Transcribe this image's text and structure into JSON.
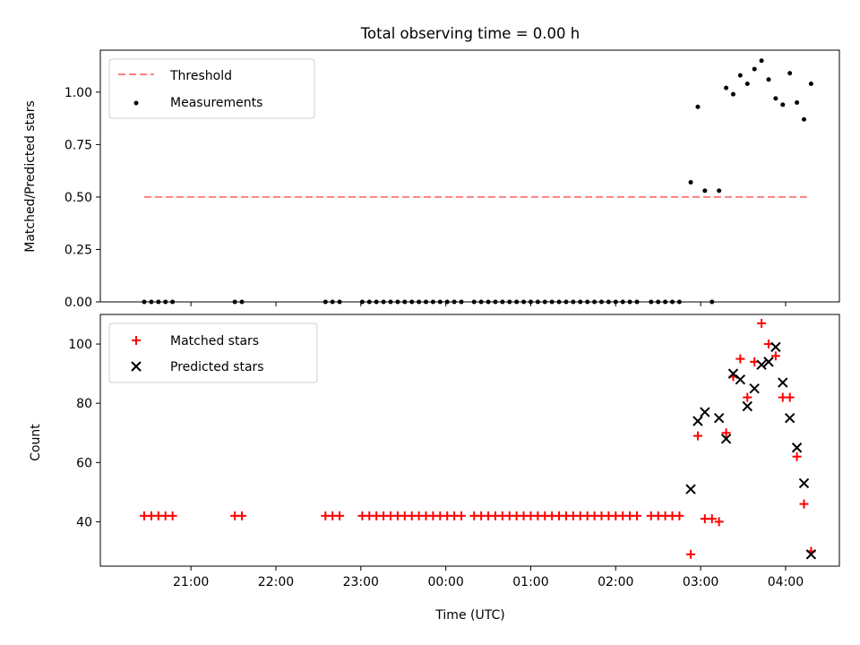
{
  "chart_data": [
    {
      "type": "scatter",
      "panel": "top",
      "title": "Total observing time = 0.00 h",
      "xlabel": "",
      "ylabel": "Matched/Predicted stars",
      "ylim": [
        0,
        1.2
      ],
      "yticks": [
        "0.00",
        "0.25",
        "0.50",
        "0.75",
        "1.00"
      ],
      "grid": false,
      "legend_position": "top-left",
      "threshold": {
        "name": "Threshold",
        "value": 0.5,
        "color": "#ff7f7f",
        "x_start": "20:27",
        "x_end": "04:15"
      },
      "series": [
        {
          "name": "Measurements",
          "color": "#000000",
          "marker": "dot",
          "points": [
            [
              "20:27",
              0
            ],
            [
              "20:32",
              0
            ],
            [
              "20:37",
              0
            ],
            [
              "20:42",
              0
            ],
            [
              "20:47",
              0
            ],
            [
              "21:31",
              0
            ],
            [
              "21:36",
              0
            ],
            [
              "22:35",
              0
            ],
            [
              "22:40",
              0
            ],
            [
              "22:45",
              0
            ],
            [
              "23:01",
              0
            ],
            [
              "23:06",
              0
            ],
            [
              "23:11",
              0
            ],
            [
              "23:16",
              0
            ],
            [
              "23:21",
              0
            ],
            [
              "23:26",
              0
            ],
            [
              "23:31",
              0
            ],
            [
              "23:36",
              0
            ],
            [
              "23:41",
              0
            ],
            [
              "23:46",
              0
            ],
            [
              "23:51",
              0
            ],
            [
              "23:56",
              0
            ],
            [
              "00:01",
              0
            ],
            [
              "00:06",
              0
            ],
            [
              "00:11",
              0
            ],
            [
              "00:20",
              0
            ],
            [
              "00:25",
              0
            ],
            [
              "00:30",
              0
            ],
            [
              "00:35",
              0
            ],
            [
              "00:40",
              0
            ],
            [
              "00:45",
              0
            ],
            [
              "00:50",
              0
            ],
            [
              "00:55",
              0
            ],
            [
              "01:00",
              0
            ],
            [
              "01:05",
              0
            ],
            [
              "01:10",
              0
            ],
            [
              "01:15",
              0
            ],
            [
              "01:20",
              0
            ],
            [
              "01:25",
              0
            ],
            [
              "01:30",
              0
            ],
            [
              "01:35",
              0
            ],
            [
              "01:40",
              0
            ],
            [
              "01:45",
              0
            ],
            [
              "01:50",
              0
            ],
            [
              "01:55",
              0
            ],
            [
              "02:00",
              0
            ],
            [
              "02:05",
              0
            ],
            [
              "02:10",
              0
            ],
            [
              "02:15",
              0
            ],
            [
              "02:25",
              0
            ],
            [
              "02:30",
              0
            ],
            [
              "02:35",
              0
            ],
            [
              "02:40",
              0
            ],
            [
              "02:45",
              0
            ],
            [
              "02:53",
              0.57
            ],
            [
              "02:58",
              0.93
            ],
            [
              "03:03",
              0.53
            ],
            [
              "03:08",
              0
            ],
            [
              "03:13",
              0.53
            ],
            [
              "03:18",
              1.02
            ],
            [
              "03:23",
              0.99
            ],
            [
              "03:28",
              1.08
            ],
            [
              "03:33",
              1.04
            ],
            [
              "03:38",
              1.11
            ],
            [
              "03:43",
              1.15
            ],
            [
              "03:48",
              1.06
            ],
            [
              "03:53",
              0.97
            ],
            [
              "03:58",
              0.94
            ],
            [
              "04:03",
              1.09
            ],
            [
              "04:08",
              0.95
            ],
            [
              "04:13",
              0.87
            ],
            [
              "04:18",
              1.04
            ]
          ]
        }
      ]
    },
    {
      "type": "scatter",
      "panel": "bottom",
      "title": "",
      "xlabel": "Time (UTC)",
      "ylabel": "Count",
      "ylim": [
        25,
        110
      ],
      "yticks": [
        "40",
        "60",
        "80",
        "100"
      ],
      "xticks": [
        "21:00",
        "22:00",
        "23:00",
        "00:00",
        "01:00",
        "02:00",
        "03:00",
        "04:00"
      ],
      "xlim": [
        "19:56",
        "04:38"
      ],
      "grid": false,
      "legend_position": "top-left",
      "series": [
        {
          "name": "Matched stars",
          "color": "#ff0000",
          "marker": "plus",
          "points": [
            [
              "20:27",
              42
            ],
            [
              "20:32",
              42
            ],
            [
              "20:37",
              42
            ],
            [
              "20:42",
              42
            ],
            [
              "20:47",
              42
            ],
            [
              "21:31",
              42
            ],
            [
              "21:36",
              42
            ],
            [
              "22:35",
              42
            ],
            [
              "22:40",
              42
            ],
            [
              "22:45",
              42
            ],
            [
              "23:01",
              42
            ],
            [
              "23:06",
              42
            ],
            [
              "23:11",
              42
            ],
            [
              "23:16",
              42
            ],
            [
              "23:21",
              42
            ],
            [
              "23:26",
              42
            ],
            [
              "23:31",
              42
            ],
            [
              "23:36",
              42
            ],
            [
              "23:41",
              42
            ],
            [
              "23:46",
              42
            ],
            [
              "23:51",
              42
            ],
            [
              "23:56",
              42
            ],
            [
              "00:01",
              42
            ],
            [
              "00:06",
              42
            ],
            [
              "00:11",
              42
            ],
            [
              "00:20",
              42
            ],
            [
              "00:25",
              42
            ],
            [
              "00:30",
              42
            ],
            [
              "00:35",
              42
            ],
            [
              "00:40",
              42
            ],
            [
              "00:45",
              42
            ],
            [
              "00:50",
              42
            ],
            [
              "00:55",
              42
            ],
            [
              "01:00",
              42
            ],
            [
              "01:05",
              42
            ],
            [
              "01:10",
              42
            ],
            [
              "01:15",
              42
            ],
            [
              "01:20",
              42
            ],
            [
              "01:25",
              42
            ],
            [
              "01:30",
              42
            ],
            [
              "01:35",
              42
            ],
            [
              "01:40",
              42
            ],
            [
              "01:45",
              42
            ],
            [
              "01:50",
              42
            ],
            [
              "01:55",
              42
            ],
            [
              "02:00",
              42
            ],
            [
              "02:05",
              42
            ],
            [
              "02:10",
              42
            ],
            [
              "02:15",
              42
            ],
            [
              "02:25",
              42
            ],
            [
              "02:30",
              42
            ],
            [
              "02:35",
              42
            ],
            [
              "02:40",
              42
            ],
            [
              "02:45",
              42
            ],
            [
              "02:53",
              29
            ],
            [
              "02:58",
              69
            ],
            [
              "03:03",
              41
            ],
            [
              "03:08",
              41
            ],
            [
              "03:13",
              40
            ],
            [
              "03:18",
              70
            ],
            [
              "03:23",
              89
            ],
            [
              "03:28",
              95
            ],
            [
              "03:33",
              82
            ],
            [
              "03:38",
              94
            ],
            [
              "03:43",
              107
            ],
            [
              "03:48",
              100
            ],
            [
              "03:53",
              96
            ],
            [
              "03:58",
              82
            ],
            [
              "04:03",
              82
            ],
            [
              "04:08",
              62
            ],
            [
              "04:13",
              46
            ],
            [
              "04:18",
              30
            ]
          ]
        },
        {
          "name": "Predicted stars",
          "color": "#000000",
          "marker": "x",
          "points": [
            [
              "02:53",
              51
            ],
            [
              "02:58",
              74
            ],
            [
              "03:03",
              77
            ],
            [
              "03:13",
              75
            ],
            [
              "03:18",
              68
            ],
            [
              "03:23",
              90
            ],
            [
              "03:28",
              88
            ],
            [
              "03:33",
              79
            ],
            [
              "03:38",
              85
            ],
            [
              "03:43",
              93
            ],
            [
              "03:48",
              94
            ],
            [
              "03:53",
              99
            ],
            [
              "03:58",
              87
            ],
            [
              "04:03",
              75
            ],
            [
              "04:08",
              65
            ],
            [
              "04:13",
              53
            ],
            [
              "04:18",
              29
            ]
          ]
        }
      ]
    }
  ]
}
